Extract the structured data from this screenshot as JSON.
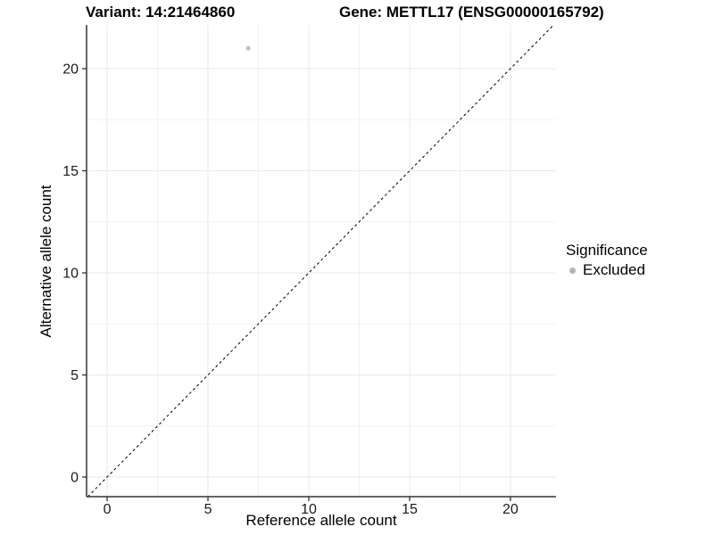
{
  "chart_data": {
    "type": "scatter",
    "titles": {
      "variant": "Variant: 14:21464860",
      "gene": "Gene: METTL17 (ENSG00000165792)"
    },
    "xlabel": "Reference allele count",
    "ylabel": "Alternative allele count",
    "xlim": [
      -1.02,
      22.26
    ],
    "ylim": [
      -0.96,
      22.14
    ],
    "x_ticks": [
      0,
      5,
      10,
      15,
      20
    ],
    "y_ticks": [
      0,
      5,
      10,
      15,
      20
    ],
    "x_minor_ticks": [
      2.5,
      7.5,
      12.5,
      17.5
    ],
    "y_minor_ticks": [
      2.5,
      7.5,
      12.5,
      17.5
    ],
    "grid": "major+minor",
    "identity_line": {
      "equation": "y = x",
      "style": "dashed"
    },
    "series": [
      {
        "name": "Excluded",
        "marker": "circle",
        "color": "#c0c0c0",
        "points": [
          {
            "x": 7,
            "y": 21
          }
        ]
      }
    ],
    "legend": {
      "title": "Significance",
      "position": "right",
      "items": [
        {
          "label": "Excluded",
          "color": "#b4b4b4",
          "marker": "circle"
        }
      ]
    },
    "colors": {
      "background": "#ffffff",
      "grid_major": "#e9e9e9",
      "grid_minor": "#f2f2f2",
      "axis_line": "#333333",
      "tick_mark": "#333333",
      "tick_text": "#1a1a1a",
      "title_text": "#000000",
      "identity_line": "#000000",
      "point": "#c0c0c0"
    }
  }
}
